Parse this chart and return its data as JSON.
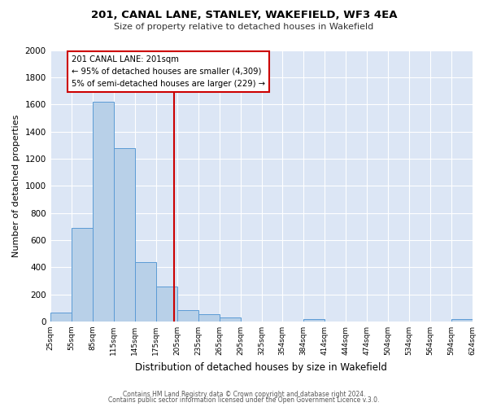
{
  "title": "201, CANAL LANE, STANLEY, WAKEFIELD, WF3 4EA",
  "subtitle": "Size of property relative to detached houses in Wakefield",
  "xlabel": "Distribution of detached houses by size in Wakefield",
  "ylabel": "Number of detached properties",
  "bar_color": "#b8d0e8",
  "bar_edge_color": "#5b9bd5",
  "fig_bg_color": "#ffffff",
  "ax_bg_color": "#dce6f5",
  "grid_color": "#ffffff",
  "annotation_box_color": "#ffffff",
  "annotation_box_edge": "#cc0000",
  "red_line_x": 201,
  "annotation_line1": "201 CANAL LANE: 201sqm",
  "annotation_line2": "← 95% of detached houses are smaller (4,309)",
  "annotation_line3": "5% of semi-detached houses are larger (229) →",
  "footer1": "Contains HM Land Registry data © Crown copyright and database right 2024.",
  "footer2": "Contains public sector information licensed under the Open Government Licence v.3.0.",
  "bin_edges": [
    25,
    55,
    85,
    115,
    145,
    175,
    205,
    235,
    265,
    295,
    325,
    354,
    384,
    414,
    444,
    474,
    504,
    534,
    564,
    594,
    624
  ],
  "bin_counts": [
    65,
    690,
    1620,
    1275,
    435,
    255,
    85,
    52,
    30,
    0,
    0,
    0,
    20,
    0,
    0,
    0,
    0,
    0,
    0,
    15
  ],
  "ylim": [
    0,
    2000
  ],
  "yticks": [
    0,
    200,
    400,
    600,
    800,
    1000,
    1200,
    1400,
    1600,
    1800,
    2000
  ]
}
